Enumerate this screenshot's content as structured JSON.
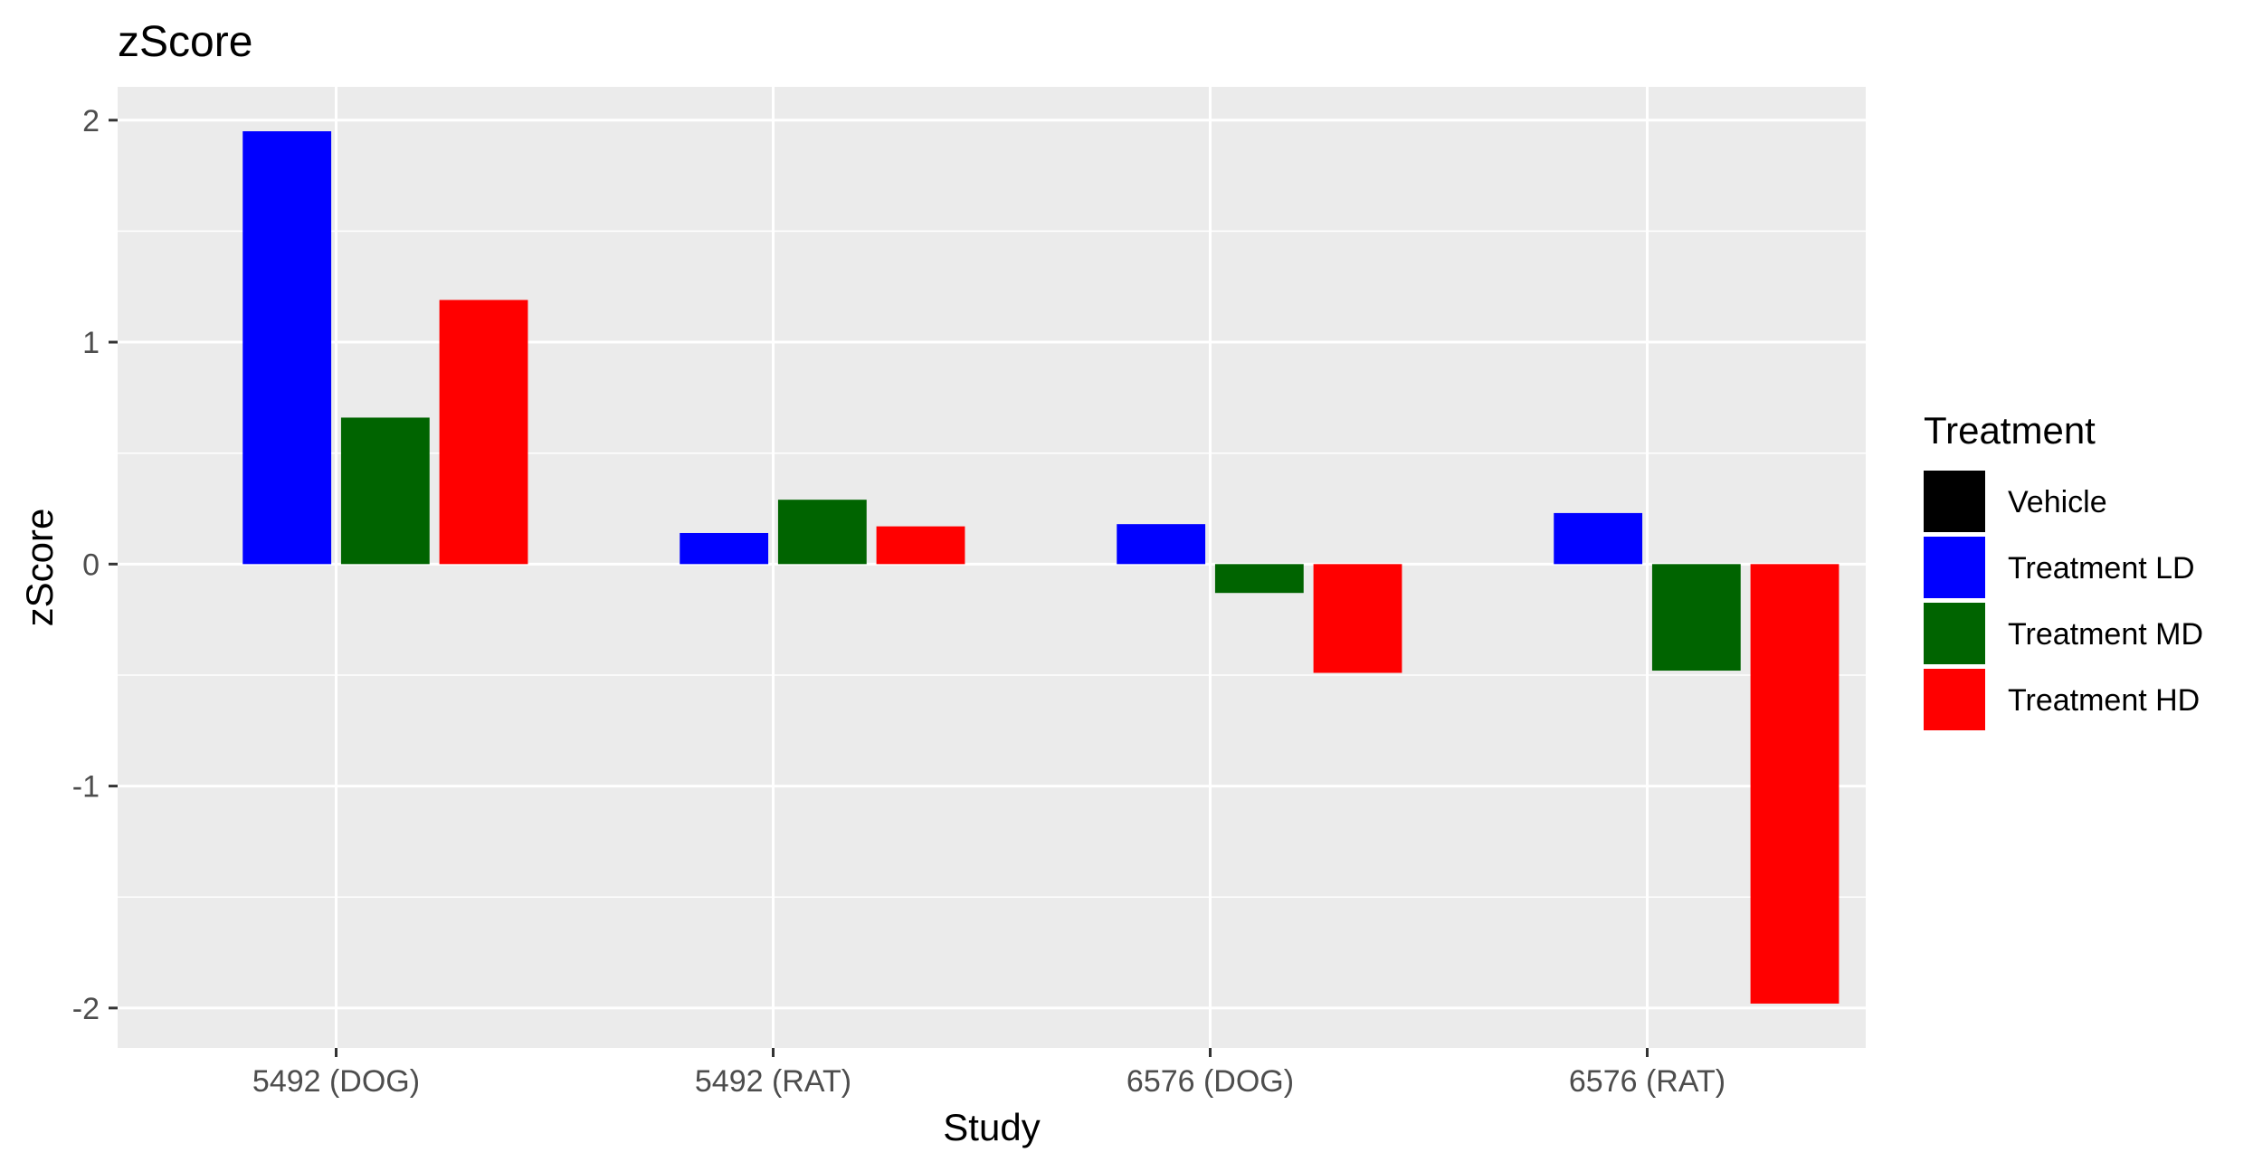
{
  "chart_data": {
    "type": "bar",
    "title": "zScore",
    "xlabel": "Study",
    "ylabel": "zScore",
    "categories": [
      "5492 (DOG)",
      "5492 (RAT)",
      "6576 (DOG)",
      "6576 (RAT)"
    ],
    "ylim": [
      -2.18,
      2.15
    ],
    "yticks": [
      2,
      1,
      0,
      -1,
      -2
    ],
    "ytick_labels": [
      "2",
      "1",
      "0",
      "-1",
      "-2"
    ],
    "grid": true,
    "legend_position": "right",
    "legend": {
      "title": "Treatment",
      "entries": [
        "Vehicle",
        "Treatment LD",
        "Treatment MD",
        "Treatment HD"
      ]
    },
    "series": [
      {
        "name": "Vehicle",
        "color": "#000000",
        "values": [
          null,
          null,
          null,
          null
        ]
      },
      {
        "name": "Treatment LD",
        "color": "#0000ff",
        "values": [
          1.95,
          0.14,
          0.18,
          0.23
        ]
      },
      {
        "name": "Treatment MD",
        "color": "#006400",
        "values": [
          0.66,
          0.29,
          -0.13,
          -0.48
        ]
      },
      {
        "name": "Treatment HD",
        "color": "#ff0000",
        "values": [
          1.19,
          0.17,
          -0.49,
          -1.98
        ]
      }
    ]
  }
}
